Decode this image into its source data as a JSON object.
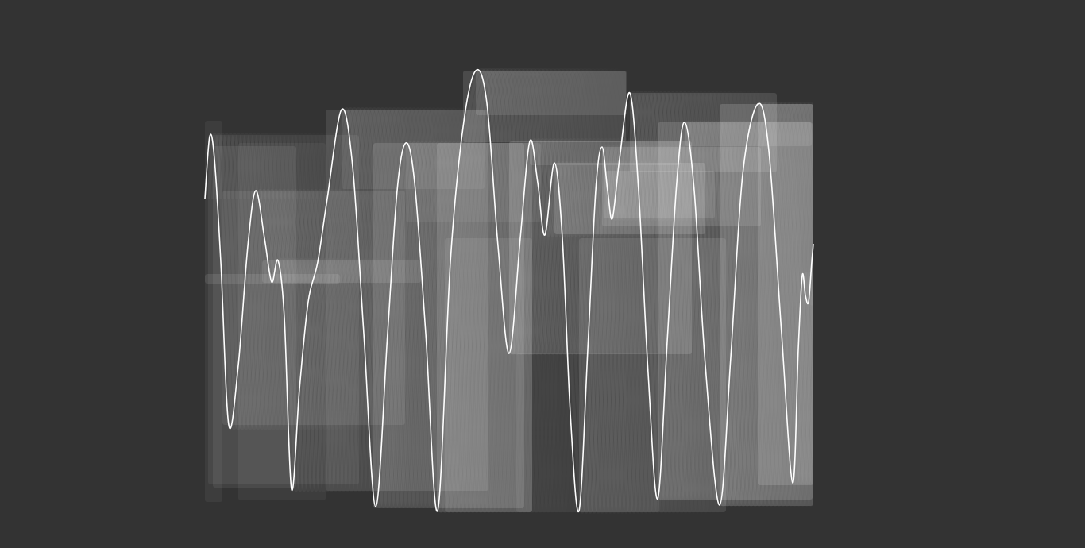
{
  "colors": {
    "background": "#333333",
    "wave": "#ffffff",
    "echo": "#ffffff"
  },
  "visualization": {
    "kind": "waveform-trail",
    "trail_count": 40
  }
}
